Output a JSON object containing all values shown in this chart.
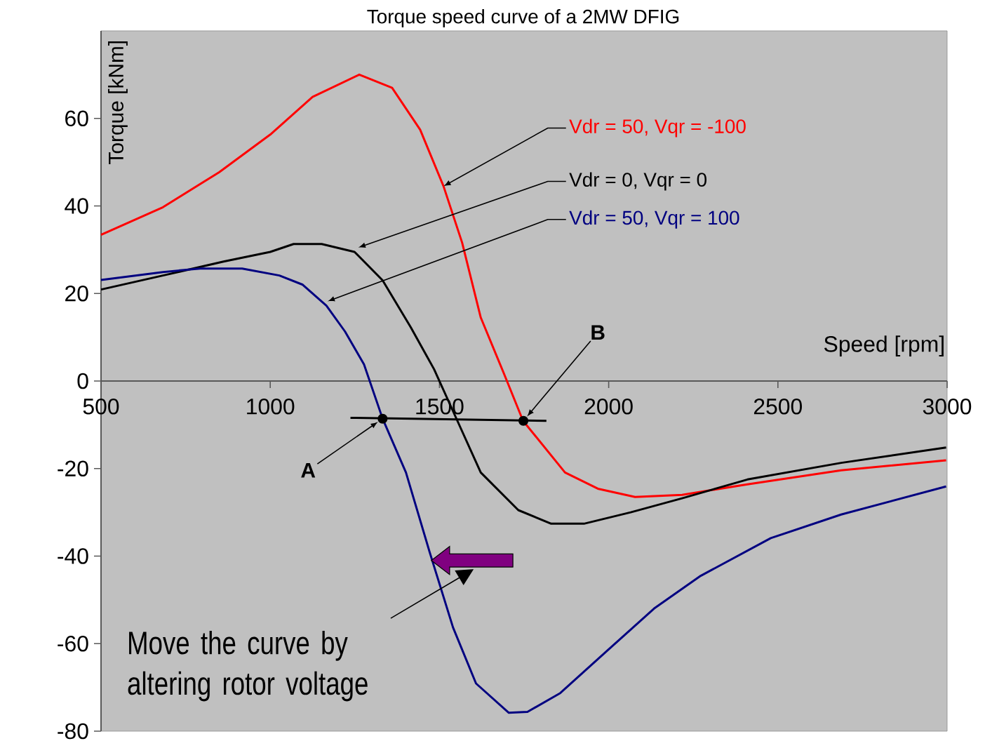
{
  "chart_data": {
    "type": "line",
    "title": "Torque speed curve of a 2MW DFIG",
    "xlabel": "Speed [rpm]",
    "ylabel": "Torque [kNm]",
    "xlim": [
      500,
      3000
    ],
    "xticks": [
      500,
      1000,
      1500,
      2000,
      2500,
      3000
    ],
    "ylim": [
      -80,
      80
    ],
    "yticks": [
      -80,
      -60,
      -40,
      -20,
      0,
      20,
      40,
      60
    ],
    "grid": false,
    "legend": false,
    "marker": "none",
    "line_style": "solid",
    "series": [
      {
        "name": "Vdr = 50, Vqr = -100",
        "color": "#ff0000",
        "x": [
          500,
          683,
          849,
          1000,
          1125,
          1263,
          1360,
          1443,
          1512,
          1567,
          1622,
          1691,
          1747,
          1871,
          1968,
          2078,
          2217,
          2410,
          2687,
          2997
        ],
        "values": [
          33.4,
          39.7,
          47.7,
          56.3,
          64.9,
          70,
          67,
          57.4,
          44.5,
          31.6,
          14.5,
          1.6,
          -9.1,
          -20.9,
          -24.6,
          -26.5,
          -26,
          -23.6,
          -20.4,
          -18.1
        ]
      },
      {
        "name": "Vdr = 0, Vqr = 0",
        "color": "#000000",
        "x": [
          500,
          683,
          862,
          1000,
          1069,
          1152,
          1249,
          1332,
          1415,
          1484,
          1553,
          1622,
          1733,
          1830,
          1927,
          2065,
          2217,
          2410,
          2687,
          2997
        ],
        "values": [
          20.9,
          24.1,
          27.3,
          29.5,
          31.3,
          31.3,
          29.5,
          23,
          12.3,
          2.7,
          -9.1,
          -20.9,
          -29.5,
          -32.6,
          -32.6,
          -30,
          -26.8,
          -22.5,
          -18.7,
          -15.2
        ]
      },
      {
        "name": "Vdr = 50, Vqr = 100",
        "color": "#000080",
        "x": [
          500,
          683,
          793,
          917,
          1027,
          1096,
          1166,
          1221,
          1277,
          1332,
          1401,
          1471,
          1540,
          1608,
          1705,
          1760,
          1857,
          1996,
          2134,
          2272,
          2479,
          2687,
          2997
        ],
        "values": [
          23.1,
          24.9,
          25.7,
          25.7,
          24.1,
          22,
          17.2,
          11.3,
          3.8,
          -8.6,
          -20.9,
          -39.1,
          -56.3,
          -69.1,
          -75.8,
          -75.6,
          -71.3,
          -61.6,
          -52,
          -44.5,
          -35.9,
          -30.5,
          -24.1
        ]
      },
      {
        "color": "#000000",
        "x": [
          1237,
          1816
        ],
        "values": [
          -8.4,
          -9.1
        ]
      }
    ],
    "annotations": [
      {
        "text": "A",
        "x": 1332,
        "y": -8.6
      },
      {
        "text": "B",
        "x": 1748,
        "y": -9.1
      },
      "Move the curve by altering rotor voltage"
    ]
  }
}
